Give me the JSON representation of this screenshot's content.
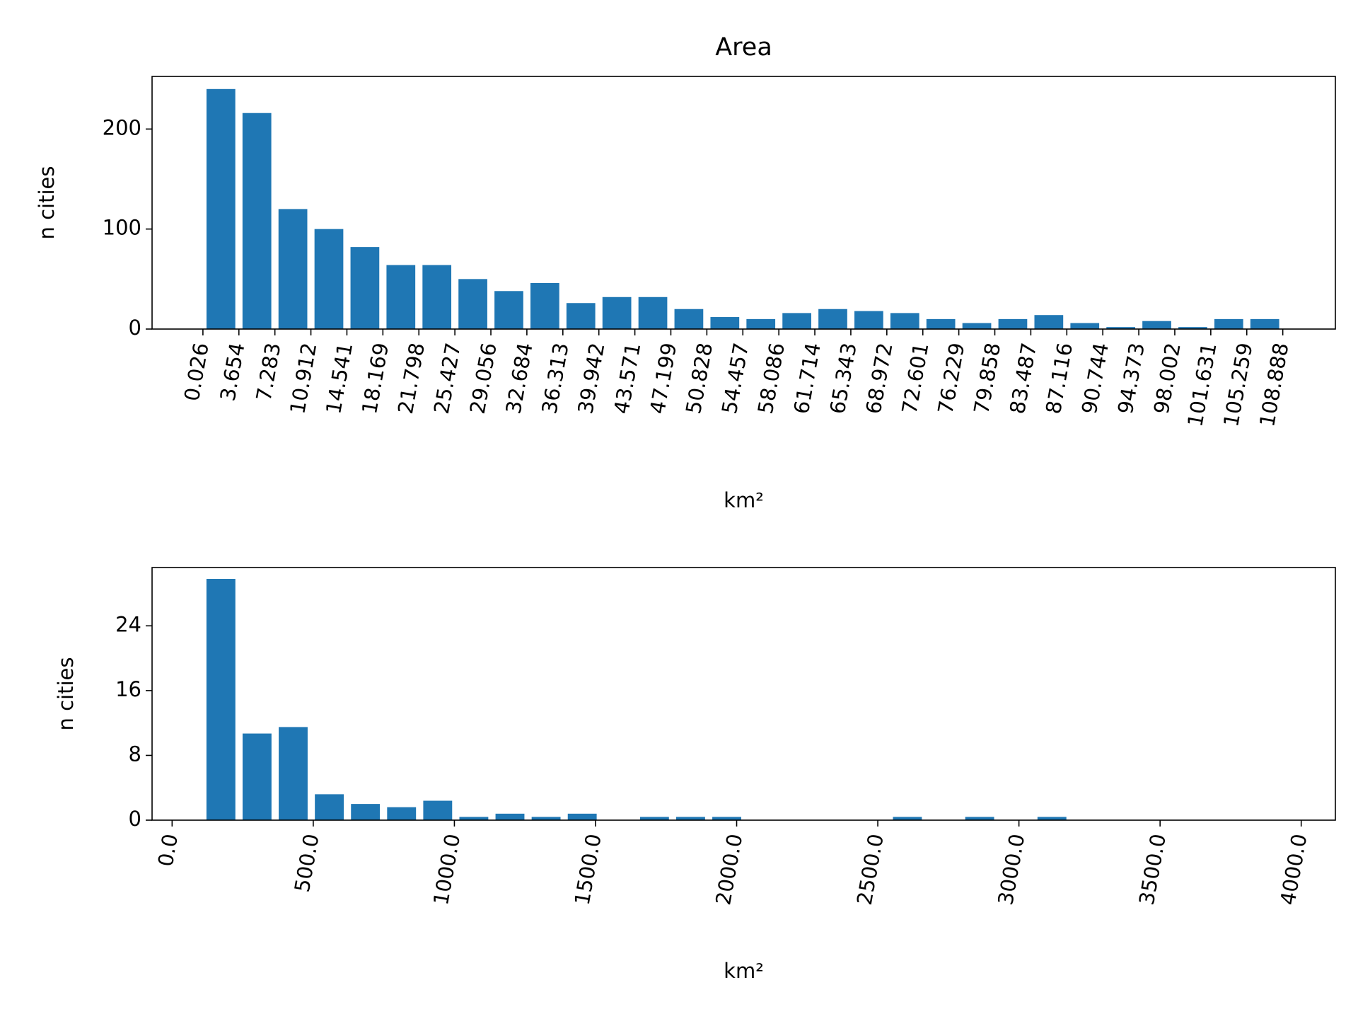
{
  "chart_data": [
    {
      "type": "histogram",
      "title": "Area",
      "xlabel": "km²",
      "ylabel": "n cities",
      "color": "#1f77b4",
      "bins": [
        0.026,
        3.654,
        7.283,
        10.912,
        14.541,
        18.169,
        21.798,
        25.427,
        29.056,
        32.684,
        36.313,
        39.942,
        43.571,
        47.199,
        50.828,
        54.457,
        58.086,
        61.714,
        65.343,
        68.972,
        72.601,
        76.229,
        79.858,
        83.487,
        87.116,
        90.744,
        94.373,
        98.002,
        101.631,
        105.259,
        108.888
      ],
      "values": [
        240,
        216,
        120,
        100,
        82,
        64,
        64,
        50,
        38,
        46,
        26,
        32,
        32,
        20,
        12,
        10,
        16,
        20,
        18,
        16,
        10,
        6,
        10,
        14,
        6,
        2,
        8,
        2,
        10,
        10
      ],
      "xticks": [
        0.026,
        3.654,
        7.283,
        10.912,
        14.541,
        18.169,
        21.798,
        25.427,
        29.056,
        32.684,
        36.313,
        39.942,
        43.571,
        47.199,
        50.828,
        54.457,
        58.086,
        61.714,
        65.343,
        68.972,
        72.601,
        76.229,
        79.858,
        83.487,
        87.116,
        90.744,
        94.373,
        98.002,
        101.631,
        105.259,
        108.888
      ],
      "xlim": [
        -5.1,
        114.19
      ],
      "ylim": [
        0,
        252.6
      ],
      "yticks": [
        0,
        100,
        200
      ]
    },
    {
      "type": "histogram",
      "xlabel": "km²",
      "ylabel": "n cities",
      "color": "#1f77b4",
      "bins": [
        108.888,
        236.888,
        364.888,
        492.888,
        620.888,
        748.888,
        876.888,
        1004.888,
        1132.888,
        1260.888,
        1388.888,
        1516.888,
        1644.888,
        1772.888,
        1900.888,
        2028.888,
        2156.888,
        2284.888,
        2412.888,
        2540.888,
        2668.888,
        2796.888,
        2924.888,
        3052.888,
        3180.888,
        3308.888,
        3436.888,
        3564.888,
        3692.888,
        3820.888,
        3948.888
      ],
      "values": [
        29.8,
        10.7,
        11.5,
        3.2,
        2.0,
        1.6,
        2.4,
        0.4,
        0.8,
        0.4,
        0.8,
        0,
        0.4,
        0.4,
        0.4,
        0,
        0,
        0,
        0,
        0.4,
        0,
        0.4,
        0,
        0.4,
        0,
        0,
        0,
        0,
        0,
        0
      ],
      "xticks": [
        {
          "value": 0,
          "label": "0.0"
        },
        {
          "value": 500,
          "label": "500.0"
        },
        {
          "value": 1000,
          "label": "1000.0"
        },
        {
          "value": 1500,
          "label": "1500.0"
        },
        {
          "value": 2000,
          "label": "2000.0"
        },
        {
          "value": 2500,
          "label": "2500.0"
        },
        {
          "value": 3000,
          "label": "3000.0"
        },
        {
          "value": 3500,
          "label": "3500.0"
        },
        {
          "value": 4000,
          "label": "4000.0"
        }
      ],
      "xlim": [
        -71,
        4121
      ],
      "ylim": [
        0,
        31.2
      ],
      "yticks": [
        0,
        8,
        16,
        24
      ]
    }
  ]
}
